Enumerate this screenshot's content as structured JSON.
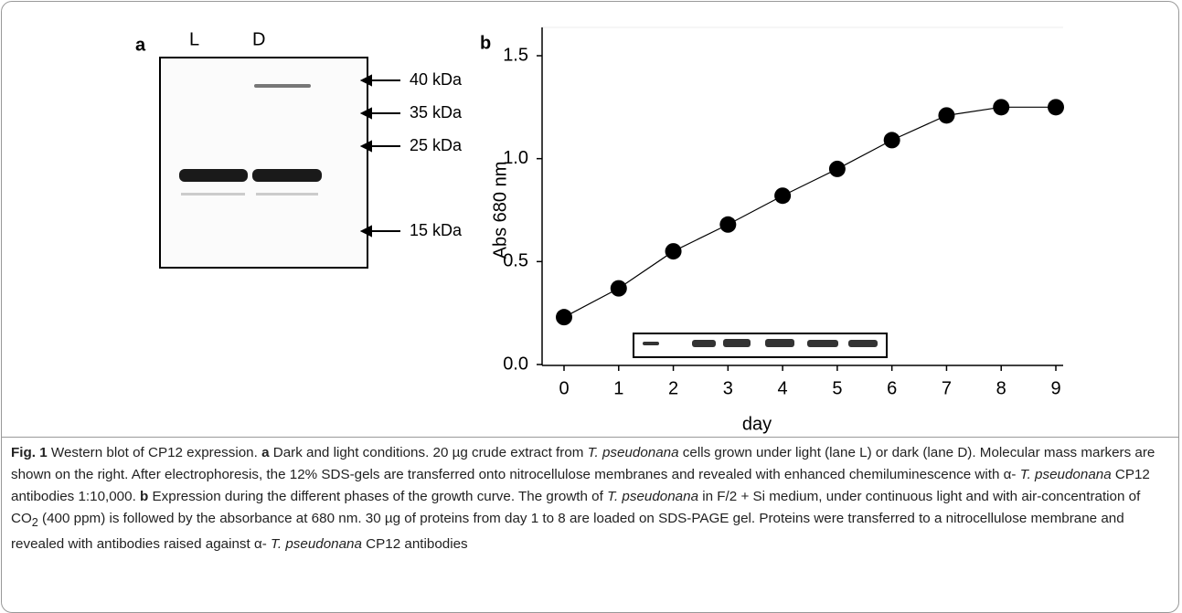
{
  "panel_a": {
    "label": "a",
    "lanes": [
      "L",
      "D"
    ],
    "markers": [
      "40 kDa",
      "35 kDa",
      "25 kDa",
      "15 kDa"
    ]
  },
  "chart_data": {
    "type": "line",
    "label": "b",
    "x_label": "day",
    "y_label": "Abs 680 nm",
    "x": [
      0,
      1,
      2,
      3,
      4,
      5,
      6,
      7,
      8,
      9
    ],
    "values": [
      0.23,
      0.37,
      0.55,
      0.68,
      0.82,
      0.95,
      1.09,
      1.21,
      1.25,
      1.25
    ],
    "color": "#000000",
    "xlim": [
      0,
      9
    ],
    "xticks": [
      0,
      1,
      2,
      3,
      4,
      5,
      6,
      7,
      8,
      9
    ],
    "ylim": [
      0,
      1.5
    ],
    "yticks": [
      {
        "value": 0,
        "label": "0.0"
      },
      {
        "value": 0.5,
        "label": "0.5"
      },
      {
        "value": 1,
        "label": "1.0"
      },
      {
        "value": 1.5,
        "label": "1.5"
      }
    ]
  },
  "caption": {
    "segments": [
      "Fig. 1",
      " Western blot of CP12 expression. ",
      "a",
      " Dark and light conditions. 20 µg crude extract from ",
      "T. pseudonana",
      " cells grown under light (lane L) or dark (lane D). Molecular mass markers are shown on the right. After electrophoresis, the 12% SDS-gels are transferred onto nitrocellulose membranes and revealed with enhanced chemiluminescence with α- ",
      "T. pseudonana",
      " CP12 antibodies 1:10,000. ",
      "b",
      " Expression during the different phases of the growth curve. The growth of ",
      "T. pseudonana",
      " in F/2 + Si medium, under continuous light and with air-concentration of CO",
      "2",
      " (400 ppm) is followed by the absorbance at 680 nm. 30 µg of proteins from day 1 to 8 are loaded on SDS-PAGE gel. Proteins were transferred to a nitrocellulose membrane and revealed with antibodies raised against α- ",
      "T. pseudonana",
      " CP12 antibodies"
    ]
  }
}
